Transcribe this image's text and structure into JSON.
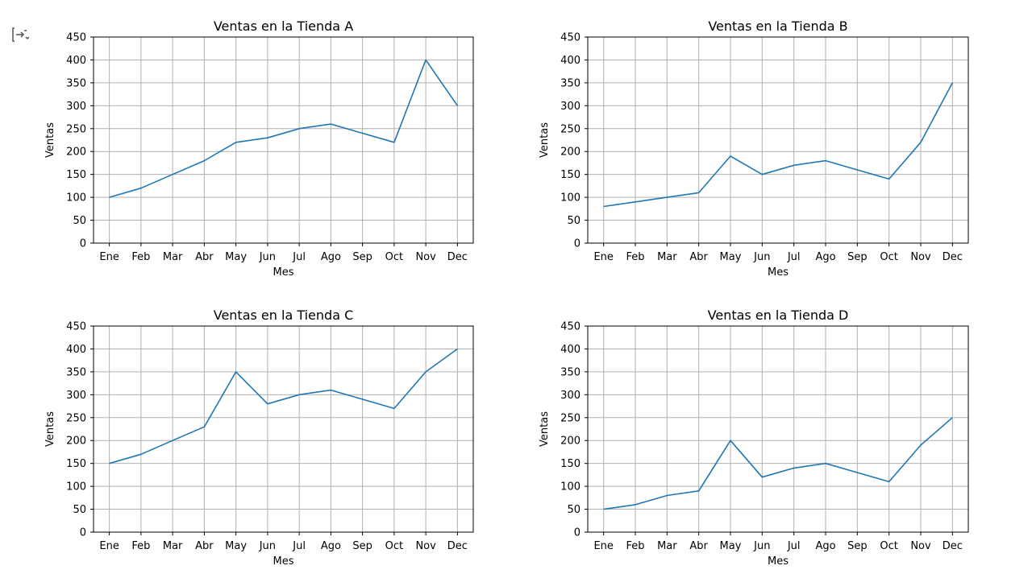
{
  "toolbar": {
    "icon": "output-toggle-icon"
  },
  "chart_data": [
    {
      "type": "line",
      "title": "Ventas en la Tienda A",
      "xlabel": "Mes",
      "ylabel": "Ventas",
      "categories": [
        "Ene",
        "Feb",
        "Mar",
        "Abr",
        "May",
        "Jun",
        "Jul",
        "Ago",
        "Sep",
        "Oct",
        "Nov",
        "Dec"
      ],
      "values": [
        100,
        120,
        150,
        180,
        220,
        230,
        250,
        260,
        240,
        220,
        400,
        300
      ],
      "ylim": [
        0,
        450
      ],
      "yticks": [
        0,
        50,
        100,
        150,
        200,
        250,
        300,
        350,
        400,
        450
      ],
      "grid": true,
      "color": "#1f77b4"
    },
    {
      "type": "line",
      "title": "Ventas en la Tienda B",
      "xlabel": "Mes",
      "ylabel": "Ventas",
      "categories": [
        "Ene",
        "Feb",
        "Mar",
        "Abr",
        "May",
        "Jun",
        "Jul",
        "Ago",
        "Sep",
        "Oct",
        "Nov",
        "Dec"
      ],
      "values": [
        80,
        90,
        100,
        110,
        190,
        150,
        170,
        180,
        160,
        140,
        220,
        350
      ],
      "ylim": [
        0,
        450
      ],
      "yticks": [
        0,
        50,
        100,
        150,
        200,
        250,
        300,
        350,
        400,
        450
      ],
      "grid": true,
      "color": "#1f77b4"
    },
    {
      "type": "line",
      "title": "Ventas en la Tienda C",
      "xlabel": "Mes",
      "ylabel": "Ventas",
      "categories": [
        "Ene",
        "Feb",
        "Mar",
        "Abr",
        "May",
        "Jun",
        "Jul",
        "Ago",
        "Sep",
        "Oct",
        "Nov",
        "Dec"
      ],
      "values": [
        150,
        170,
        200,
        230,
        350,
        280,
        300,
        310,
        290,
        270,
        350,
        400
      ],
      "ylim": [
        0,
        450
      ],
      "yticks": [
        0,
        50,
        100,
        150,
        200,
        250,
        300,
        350,
        400,
        450
      ],
      "grid": true,
      "color": "#1f77b4"
    },
    {
      "type": "line",
      "title": "Ventas en la Tienda D",
      "xlabel": "Mes",
      "ylabel": "Ventas",
      "categories": [
        "Ene",
        "Feb",
        "Mar",
        "Abr",
        "May",
        "Jun",
        "Jul",
        "Ago",
        "Sep",
        "Oct",
        "Nov",
        "Dec"
      ],
      "values": [
        50,
        60,
        80,
        90,
        200,
        120,
        140,
        150,
        130,
        110,
        190,
        250
      ],
      "ylim": [
        0,
        450
      ],
      "yticks": [
        0,
        50,
        100,
        150,
        200,
        250,
        300,
        350,
        400,
        450
      ],
      "grid": true,
      "color": "#1f77b4"
    }
  ]
}
